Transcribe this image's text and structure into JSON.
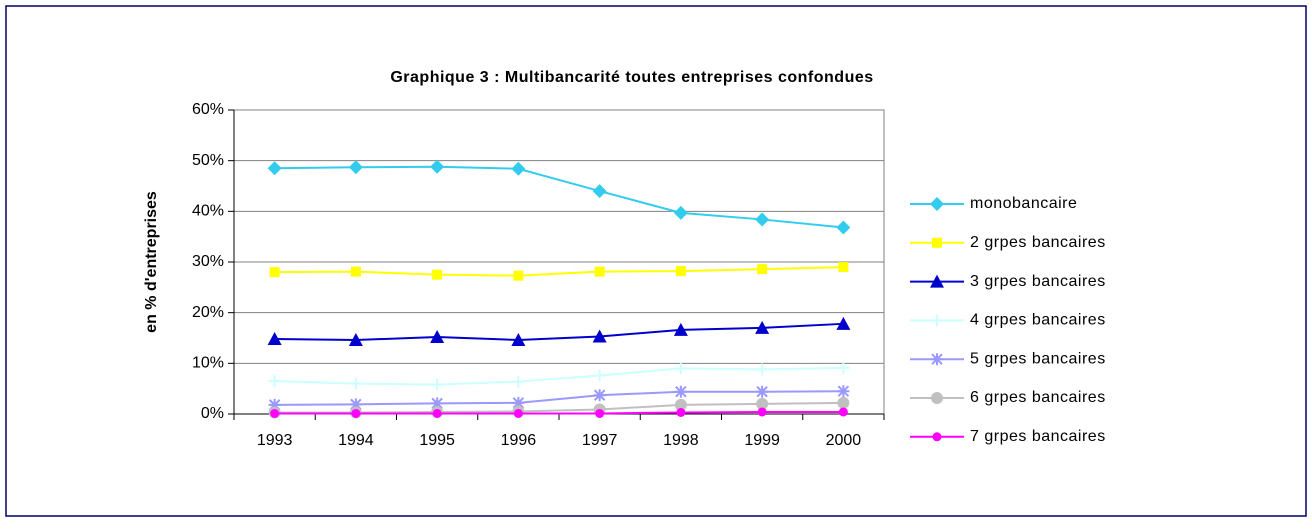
{
  "chart_data": {
    "type": "line",
    "title": "Graphique 3 : Multibancarité toutes entreprises confondues",
    "y_label": "en % d'entreprises",
    "categories": [
      "1993",
      "1994",
      "1995",
      "1996",
      "1997",
      "1998",
      "1999",
      "2000"
    ],
    "ylim": [
      0,
      60
    ],
    "yticks": [
      {
        "value": 0,
        "label": "0%"
      },
      {
        "value": 10,
        "label": "10%"
      },
      {
        "value": 20,
        "label": "20%"
      },
      {
        "value": 30,
        "label": "30%"
      },
      {
        "value": 40,
        "label": "40%"
      },
      {
        "value": 50,
        "label": "50%"
      },
      {
        "value": 60,
        "label": "60%"
      }
    ],
    "grid": true,
    "legend": "right",
    "series": [
      {
        "name": "monobancaire",
        "color": "#33ccee",
        "marker": "diamond",
        "values": [
          48.5,
          48.7,
          48.8,
          48.4,
          44,
          39.7,
          38.4,
          36.8
        ]
      },
      {
        "name": "2 grpes bancaires",
        "color": "#ffff00",
        "marker": "square",
        "values": [
          28,
          28.1,
          27.5,
          27.3,
          28.1,
          28.2,
          28.6,
          29
        ]
      },
      {
        "name": "3 grpes bancaires",
        "color": "#0000cc",
        "marker": "triangle",
        "values": [
          14.8,
          14.6,
          15.2,
          14.6,
          15.3,
          16.6,
          17,
          17.8
        ]
      },
      {
        "name": "4 grpes bancaires",
        "color": "#ccffff",
        "marker": "plus",
        "values": [
          6.5,
          6,
          5.8,
          6.4,
          7.6,
          9,
          8.8,
          9.1
        ]
      },
      {
        "name": "5 grpes bancaires",
        "color": "#9999ff",
        "marker": "star",
        "values": [
          1.8,
          1.9,
          2.1,
          2.2,
          3.7,
          4.4,
          4.4,
          4.5
        ]
      },
      {
        "name": "6 grpes bancaires",
        "color": "#c0c0c0",
        "marker": "circle",
        "values": [
          0.3,
          0.3,
          0.4,
          0.5,
          0.9,
          1.8,
          2,
          2.2
        ]
      },
      {
        "name": "7 grpes bancaires",
        "color": "#ff00ff",
        "marker": "smallcircle",
        "values": [
          0.1,
          0.1,
          0.1,
          0.1,
          0.1,
          0.3,
          0.4,
          0.4
        ]
      }
    ]
  }
}
